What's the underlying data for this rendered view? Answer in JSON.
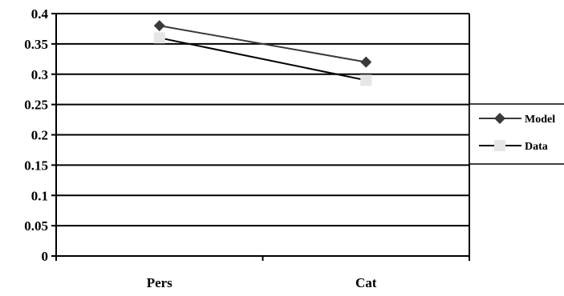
{
  "chart_data": {
    "type": "line",
    "title": "",
    "xlabel": "",
    "ylabel": "",
    "categories": [
      "Pers",
      "Cat"
    ],
    "ylim": [
      0,
      0.4
    ],
    "yticks": [
      "0",
      "0.05",
      "0.1",
      "0.15",
      "0.2",
      "0.25",
      "0.3",
      "0.35",
      "0.4"
    ],
    "grid": true,
    "legend": "right",
    "series": [
      {
        "name": "Model",
        "values": [
          0.38,
          0.32
        ],
        "marker": "diamond",
        "color": "#3a3a3a"
      },
      {
        "name": "Data",
        "values": [
          0.36,
          0.29
        ],
        "marker": "square",
        "color": "#000000",
        "marker_color": "#e6e6e6"
      }
    ]
  }
}
